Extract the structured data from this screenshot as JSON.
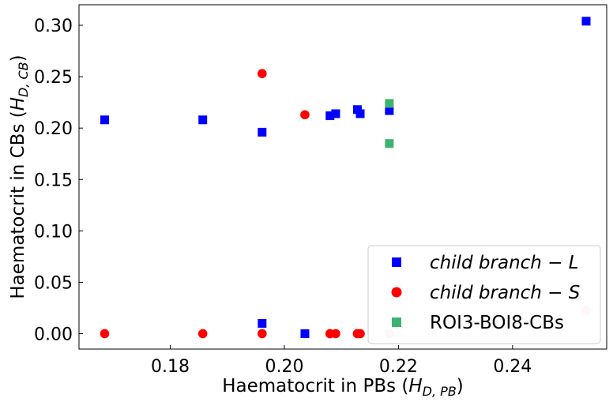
{
  "chart_data": {
    "type": "scatter",
    "xlabel": "Haematocrit in PBs (",
    "xlabel_math": "H",
    "xlabel_sub": "D, PB",
    "xlabel_close": ")",
    "ylabel": "Haematocrit in CBs (",
    "ylabel_math": "H",
    "ylabel_sub": "D, CB",
    "ylabel_close": ")",
    "xlim": [
      0.164,
      0.2565
    ],
    "ylim": [
      -0.015,
      0.32
    ],
    "xticks": [
      0.18,
      0.2,
      0.22,
      0.24
    ],
    "xtick_labels": [
      "0.18",
      "0.20",
      "0.22",
      "0.24"
    ],
    "yticks": [
      0.0,
      0.05,
      0.1,
      0.15,
      0.2,
      0.25,
      0.3
    ],
    "ytick_labels": [
      "0.00",
      "0.05",
      "0.10",
      "0.15",
      "0.20",
      "0.25",
      "0.30"
    ],
    "grid": false,
    "legend_position": "lower-right",
    "series": [
      {
        "name": "child branch − L",
        "marker": "square",
        "color": "#0000ff",
        "legend_italic": true,
        "points": [
          [
            0.1685,
            0.208
          ],
          [
            0.1857,
            0.208
          ],
          [
            0.1961,
            0.196
          ],
          [
            0.208,
            0.212
          ],
          [
            0.209,
            0.214
          ],
          [
            0.2128,
            0.218
          ],
          [
            0.2133,
            0.214
          ],
          [
            0.2184,
            0.217
          ],
          [
            0.2529,
            0.304
          ],
          [
            0.1961,
            0.01
          ],
          [
            0.2036,
            0.0
          ]
        ]
      },
      {
        "name": "child branch − S",
        "marker": "circle",
        "color": "#ff0000",
        "legend_italic": true,
        "points": [
          [
            0.1685,
            0.0
          ],
          [
            0.1857,
            0.0
          ],
          [
            0.1961,
            0.0
          ],
          [
            0.1961,
            0.253
          ],
          [
            0.2036,
            0.213
          ],
          [
            0.208,
            0.0
          ],
          [
            0.209,
            0.0
          ],
          [
            0.2128,
            0.0
          ],
          [
            0.2133,
            0.0
          ]
        ]
      },
      {
        "name": "ROI3-BOI8-CBs",
        "marker": "square",
        "color": "#3cb371",
        "legend_italic": false,
        "points": [
          [
            0.2184,
            0.224
          ],
          [
            0.2184,
            0.185
          ]
        ]
      },
      {
        "name": "",
        "marker": "circle",
        "color": "#ffc0cb",
        "legend_italic": false,
        "points": [
          [
            0.2184,
            0.0
          ],
          [
            0.2529,
            0.023
          ]
        ]
      }
    ]
  }
}
